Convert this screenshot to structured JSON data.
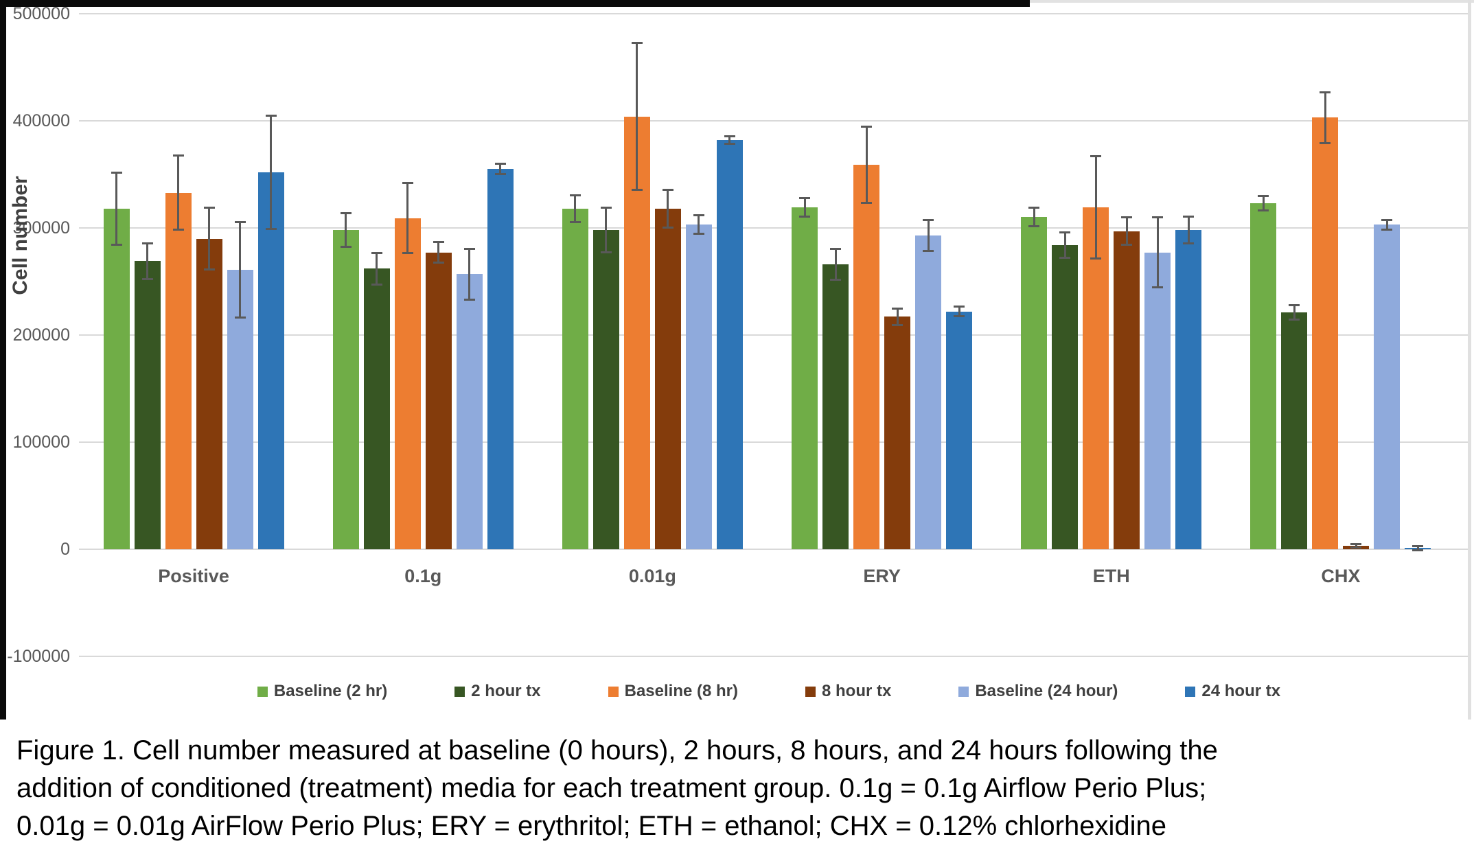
{
  "figure": {
    "y_axis_title": "Cell number",
    "y_ticks": [
      "500000",
      "400000",
      "300000",
      "200000",
      "100000",
      "0",
      "-100000"
    ]
  },
  "chart_data": {
    "type": "bar",
    "title": "",
    "xlabel": "",
    "ylabel": "Cell number",
    "ylim": [
      -100000,
      500000
    ],
    "ytick_step": 100000,
    "grid": true,
    "legend_position": "bottom",
    "error_bars": true,
    "categories": [
      "Positive",
      "0.1g",
      "0.01g",
      "ERY",
      "ETH",
      "CHX"
    ],
    "series": [
      {
        "name": "Baseline (2 hr)",
        "color": "#70AD47",
        "values": [
          318000,
          298000,
          318000,
          319000,
          310000,
          323000
        ],
        "errors": [
          34000,
          16000,
          13000,
          9000,
          9000,
          7000
        ]
      },
      {
        "name": "2 hour tx",
        "color": "#375623",
        "values": [
          269000,
          262000,
          298000,
          266000,
          284000,
          221000
        ],
        "errors": [
          17000,
          15000,
          21000,
          15000,
          12000,
          7000
        ]
      },
      {
        "name": "Baseline (8 hr)",
        "color": "#ED7D31",
        "values": [
          333000,
          309000,
          404000,
          359000,
          319000,
          403000
        ],
        "errors": [
          35000,
          33000,
          69000,
          36000,
          48000,
          24000
        ]
      },
      {
        "name": "8 hour tx",
        "color": "#843C0C",
        "values": [
          290000,
          277000,
          318000,
          217000,
          297000,
          3000
        ],
        "errors": [
          29000,
          10000,
          18000,
          8000,
          13000,
          2000
        ]
      },
      {
        "name": "Baseline (24 hour)",
        "color": "#8FAADC",
        "values": [
          261000,
          257000,
          303000,
          293000,
          277000,
          303000
        ],
        "errors": [
          45000,
          24000,
          9000,
          15000,
          33000,
          5000
        ]
      },
      {
        "name": "24 hour tx",
        "color": "#2E75B6",
        "values": [
          352000,
          355000,
          382000,
          222000,
          298000,
          1000
        ],
        "errors": [
          53000,
          5000,
          4000,
          5000,
          13000,
          2000
        ]
      }
    ]
  },
  "caption": {
    "line1": "Figure 1. Cell number measured at baseline (0 hours), 2 hours, 8 hours, and 24 hours following the",
    "line2": "addition of conditioned (treatment) media for each treatment group. 0.1g = 0.1g Airflow Perio Plus;",
    "line3": "0.01g = 0.01g AirFlow Perio Plus; ERY = erythritol; ETH = ethanol; CHX = 0.12% chlorhexidine"
  }
}
